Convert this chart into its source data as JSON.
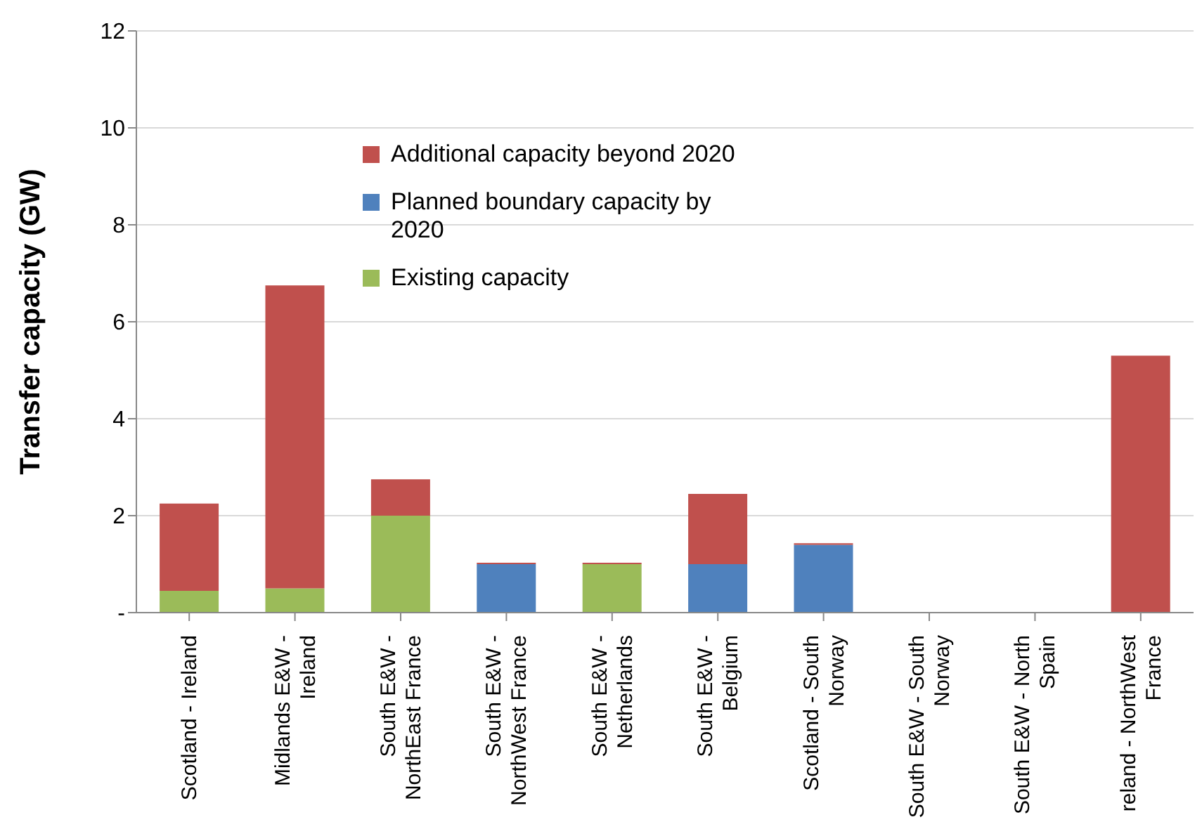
{
  "chart_data": {
    "type": "bar",
    "stacked": true,
    "ylabel": "Transfer capacity (GW)",
    "categories": [
      "Scotland - Ireland",
      "Midlands E&W - Ireland",
      "South E&W - NorthEast France",
      "South E&W - NorthWest France",
      "South E&W - Netherlands",
      "South E&W - Belgium",
      "Scotland - South Norway",
      "South E&W - South Norway",
      "South E&W - North Spain",
      "reland - NorthWest France"
    ],
    "series": [
      {
        "name": "Existing capacity",
        "color": "#9bbb59",
        "values": [
          0.45,
          0.5,
          2.0,
          0,
          1.0,
          0,
          0,
          0,
          0,
          0
        ]
      },
      {
        "name": "Planned boundary capacity by 2020",
        "color": "#4f81bd",
        "values": [
          0,
          0,
          0,
          1.0,
          0,
          1.0,
          1.4,
          0,
          0,
          0
        ]
      },
      {
        "name": "Additional capacity beyond 2020",
        "color": "#c0504d",
        "values": [
          1.8,
          6.25,
          0.75,
          0.03,
          0.03,
          1.45,
          0.03,
          0,
          0,
          5.3
        ]
      }
    ],
    "ylim": [
      0,
      12
    ],
    "yticks": [
      {
        "value": 0,
        "label": "-"
      },
      2,
      4,
      6,
      8,
      10,
      12
    ],
    "grid": "y",
    "legend": "top"
  }
}
